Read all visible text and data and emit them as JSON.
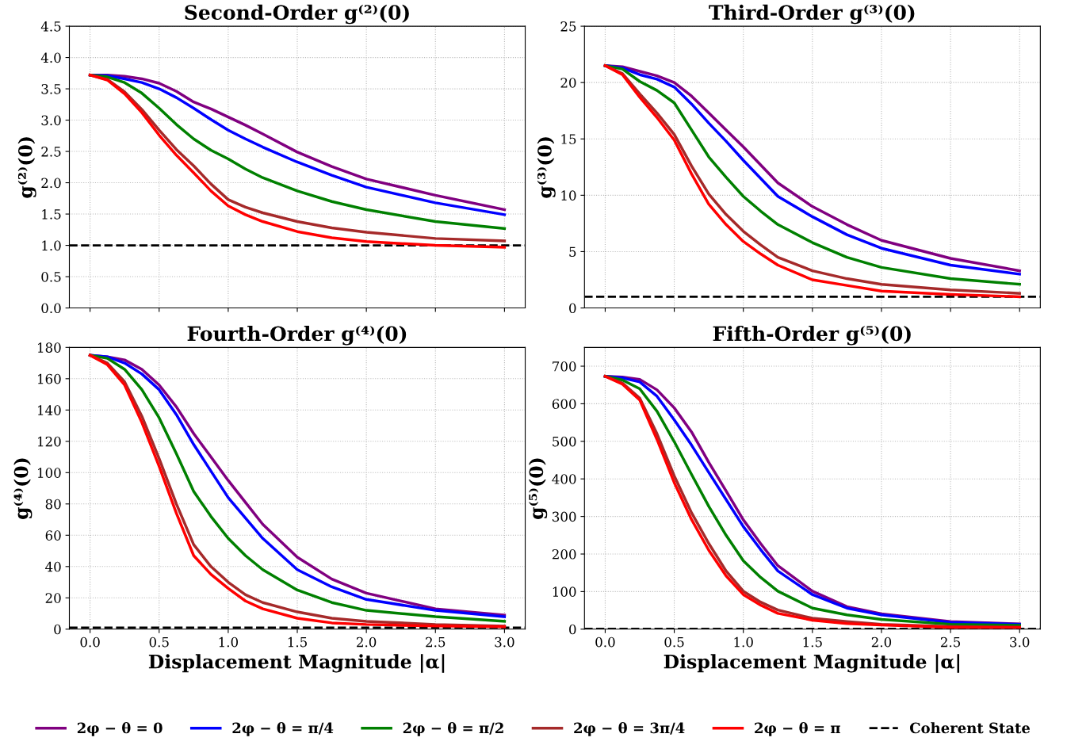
{
  "chart_data": [
    {
      "type": "line",
      "title": "Second-Order g⁽²⁾(0)",
      "ylabel": "g⁽²⁾(0)",
      "x": [
        0.0,
        0.125,
        0.25,
        0.375,
        0.5,
        0.625,
        0.75,
        0.875,
        1.0,
        1.125,
        1.25,
        1.5,
        1.75,
        2.0,
        2.5,
        3.0
      ],
      "xlim": [
        -0.15,
        3.15
      ],
      "xticks": [
        0,
        0.5,
        1,
        1.5,
        2,
        2.5,
        3
      ],
      "ylim": [
        0,
        4.5
      ],
      "yticks": [
        {
          "value": 0,
          "label": "0.0"
        },
        0.5,
        {
          "value": 1,
          "label": "1.0"
        },
        1.5,
        {
          "value": 2,
          "label": "2.0"
        },
        2.5,
        {
          "value": 3,
          "label": "3.0"
        },
        3.5,
        {
          "value": 4,
          "label": "4.0"
        },
        4.5
      ],
      "tick_labels": "y",
      "grid": true,
      "legend": "bottom",
      "line_style": "solid",
      "marker": "none",
      "series": [
        {
          "name": "2φ − θ = 0",
          "color": "#800080",
          "values": [
            3.72,
            3.72,
            3.7,
            3.66,
            3.59,
            3.46,
            3.29,
            3.18,
            3.05,
            2.92,
            2.78,
            2.49,
            2.26,
            2.06,
            1.8,
            1.57
          ]
        },
        {
          "name": "2φ − θ = π/4",
          "color": "#0000ff",
          "values": [
            3.72,
            3.71,
            3.66,
            3.6,
            3.5,
            3.36,
            3.19,
            3.01,
            2.84,
            2.7,
            2.57,
            2.33,
            2.12,
            1.93,
            1.68,
            1.49
          ]
        },
        {
          "name": "2φ − θ = π/2",
          "color": "#008000",
          "values": [
            3.72,
            3.69,
            3.6,
            3.43,
            3.19,
            2.93,
            2.7,
            2.52,
            2.38,
            2.22,
            2.08,
            1.87,
            1.7,
            1.57,
            1.38,
            1.27
          ]
        },
        {
          "name": "2φ − θ = 3π/4",
          "color": "#a52a2a",
          "values": [
            3.72,
            3.65,
            3.45,
            3.17,
            2.84,
            2.53,
            2.27,
            1.98,
            1.73,
            1.61,
            1.52,
            1.38,
            1.28,
            1.21,
            1.11,
            1.07
          ]
        },
        {
          "name": "2φ − θ = π",
          "color": "#ff0000",
          "values": [
            3.72,
            3.64,
            3.42,
            3.12,
            2.76,
            2.44,
            2.16,
            1.87,
            1.63,
            1.49,
            1.38,
            1.22,
            1.12,
            1.06,
            1.0,
            0.97
          ]
        }
      ],
      "ref_lines": [
        {
          "axis": "y",
          "value": 1,
          "label": "Coherent State",
          "color": "#000000",
          "line_style": "dashed"
        }
      ]
    },
    {
      "type": "line",
      "title": "Third-Order g⁽³⁾(0)",
      "ylabel": "g⁽³⁾(0)",
      "x": [
        0.0,
        0.125,
        0.25,
        0.375,
        0.5,
        0.625,
        0.75,
        0.875,
        1.0,
        1.125,
        1.25,
        1.5,
        1.75,
        2.0,
        2.5,
        3.0
      ],
      "xlim": [
        -0.15,
        3.15
      ],
      "xticks": [
        0,
        0.5,
        1,
        1.5,
        2,
        2.5,
        3
      ],
      "ylim": [
        0,
        25
      ],
      "yticks": [
        0,
        5,
        10,
        15,
        20,
        25
      ],
      "tick_labels": "y",
      "grid": true,
      "legend": "bottom",
      "line_style": "solid",
      "marker": "none",
      "series": [
        {
          "name": "2φ − θ = 0",
          "color": "#800080",
          "values": [
            21.5,
            21.4,
            21.0,
            20.6,
            20.0,
            18.8,
            17.3,
            15.8,
            14.3,
            12.7,
            11.1,
            9.0,
            7.4,
            6.0,
            4.4,
            3.3
          ]
        },
        {
          "name": "2φ − θ = π/4",
          "color": "#0000ff",
          "values": [
            21.5,
            21.3,
            20.7,
            20.3,
            19.6,
            18.1,
            16.4,
            14.8,
            13.1,
            11.5,
            9.9,
            8.1,
            6.5,
            5.3,
            3.8,
            3.0
          ]
        },
        {
          "name": "2φ − θ = π/2",
          "color": "#008000",
          "values": [
            21.5,
            21.2,
            20.1,
            19.3,
            18.2,
            15.8,
            13.4,
            11.6,
            9.9,
            8.6,
            7.4,
            5.8,
            4.5,
            3.6,
            2.6,
            2.1
          ]
        },
        {
          "name": "2φ − θ = 3π/4",
          "color": "#a52a2a",
          "values": [
            21.5,
            20.8,
            19.0,
            17.3,
            15.4,
            12.6,
            10.1,
            8.3,
            6.8,
            5.6,
            4.5,
            3.3,
            2.6,
            2.1,
            1.6,
            1.3
          ]
        },
        {
          "name": "2φ − θ = π",
          "color": "#ff0000",
          "values": [
            21.5,
            20.7,
            18.7,
            16.9,
            14.9,
            11.9,
            9.2,
            7.4,
            5.9,
            4.8,
            3.8,
            2.5,
            2.0,
            1.5,
            1.2,
            1.0
          ]
        }
      ],
      "ref_lines": [
        {
          "axis": "y",
          "value": 1,
          "color": "#000000",
          "line_style": "dashed"
        }
      ]
    },
    {
      "type": "line",
      "title": "Fourth-Order g⁽⁴⁾(0)",
      "xlabel": "Displacement Magnitude |α|",
      "ylabel": "g⁽⁴⁾(0)",
      "x": [
        0.0,
        0.125,
        0.25,
        0.375,
        0.5,
        0.625,
        0.75,
        0.875,
        1.0,
        1.125,
        1.25,
        1.5,
        1.75,
        2.0,
        2.5,
        3.0
      ],
      "xlim": [
        -0.15,
        3.15
      ],
      "xticks": [
        {
          "value": 0,
          "label": "0.0"
        },
        0.5,
        {
          "value": 1,
          "label": "1.0"
        },
        1.5,
        {
          "value": 2,
          "label": "2.0"
        },
        2.5,
        {
          "value": 3,
          "label": "3.0"
        }
      ],
      "ylim": [
        0,
        180
      ],
      "yticks": [
        0,
        20,
        40,
        60,
        80,
        100,
        120,
        140,
        160,
        180
      ],
      "grid": true,
      "legend": "bottom",
      "line_style": "solid",
      "marker": "none",
      "series": [
        {
          "name": "2φ − θ = 0",
          "color": "#800080",
          "values": [
            175,
            174,
            172,
            166,
            156,
            142,
            125,
            110,
            95,
            81,
            67,
            46,
            32,
            23,
            13,
            9
          ]
        },
        {
          "name": "2φ − θ = π/4",
          "color": "#0000ff",
          "values": [
            175,
            174,
            170,
            163,
            153,
            137,
            118,
            101,
            84,
            71,
            58,
            38,
            27,
            19,
            12,
            8
          ]
        },
        {
          "name": "2φ − θ = π/2",
          "color": "#008000",
          "values": [
            175,
            173,
            166,
            153,
            135,
            112,
            88,
            72,
            58,
            47,
            38,
            25,
            17,
            12,
            8,
            5
          ]
        },
        {
          "name": "2φ − θ = 3π/4",
          "color": "#a52a2a",
          "values": [
            175,
            170,
            158,
            136,
            109,
            80,
            54,
            40,
            30,
            22,
            17,
            11,
            7,
            5,
            3,
            2
          ]
        },
        {
          "name": "2φ − θ = π",
          "color": "#ff0000",
          "values": [
            175,
            169,
            156,
            132,
            104,
            74,
            47,
            35,
            26,
            18,
            13,
            7,
            4,
            3,
            2,
            1.5
          ]
        }
      ],
      "ref_lines": [
        {
          "axis": "y",
          "value": 1,
          "color": "#000000",
          "line_style": "dashed"
        }
      ]
    },
    {
      "type": "line",
      "title": "Fifth-Order g⁽⁵⁾(0)",
      "xlabel": "Displacement Magnitude |α|",
      "ylabel": "g⁽⁵⁾(0)",
      "x": [
        0.0,
        0.125,
        0.25,
        0.375,
        0.5,
        0.625,
        0.75,
        0.875,
        1.0,
        1.125,
        1.25,
        1.5,
        1.75,
        2.0,
        2.5,
        3.0
      ],
      "xlim": [
        -0.15,
        3.15
      ],
      "xticks": [
        {
          "value": 0,
          "label": "0.0"
        },
        0.5,
        {
          "value": 1,
          "label": "1.0"
        },
        1.5,
        {
          "value": 2,
          "label": "2.0"
        },
        2.5,
        {
          "value": 3,
          "label": "3.0"
        }
      ],
      "ylim": [
        0,
        750
      ],
      "yticks": [
        0,
        100,
        200,
        300,
        400,
        500,
        600,
        700
      ],
      "grid": true,
      "legend": "bottom",
      "line_style": "solid",
      "marker": "none",
      "series": [
        {
          "name": "2φ − θ = 0",
          "color": "#800080",
          "values": [
            673,
            671,
            665,
            637,
            589,
            525,
            444,
            368,
            291,
            228,
            169,
            101,
            60,
            41,
            20,
            14
          ]
        },
        {
          "name": "2φ − θ = π/4",
          "color": "#0000ff",
          "values": [
            673,
            669,
            658,
            620,
            557,
            490,
            417,
            345,
            273,
            212,
            155,
            92,
            56,
            38,
            18,
            13
          ]
        },
        {
          "name": "2φ − θ = π/2",
          "color": "#008000",
          "values": [
            673,
            663,
            640,
            580,
            499,
            412,
            327,
            250,
            182,
            138,
            101,
            56,
            38,
            26,
            13,
            10
          ]
        },
        {
          "name": "2φ − θ = 3π/4",
          "color": "#a52a2a",
          "values": [
            673,
            655,
            615,
            520,
            408,
            310,
            228,
            155,
            101,
            72,
            51,
            29,
            20,
            13,
            7,
            5
          ]
        },
        {
          "name": "2φ − θ = π",
          "color": "#ff0000",
          "values": [
            673,
            652,
            610,
            505,
            390,
            292,
            210,
            142,
            92,
            64,
            42,
            24,
            15,
            11,
            5,
            5
          ]
        }
      ],
      "ref_lines": [
        {
          "axis": "y",
          "value": 1,
          "color": "#000000",
          "line_style": "dashed"
        }
      ]
    }
  ]
}
